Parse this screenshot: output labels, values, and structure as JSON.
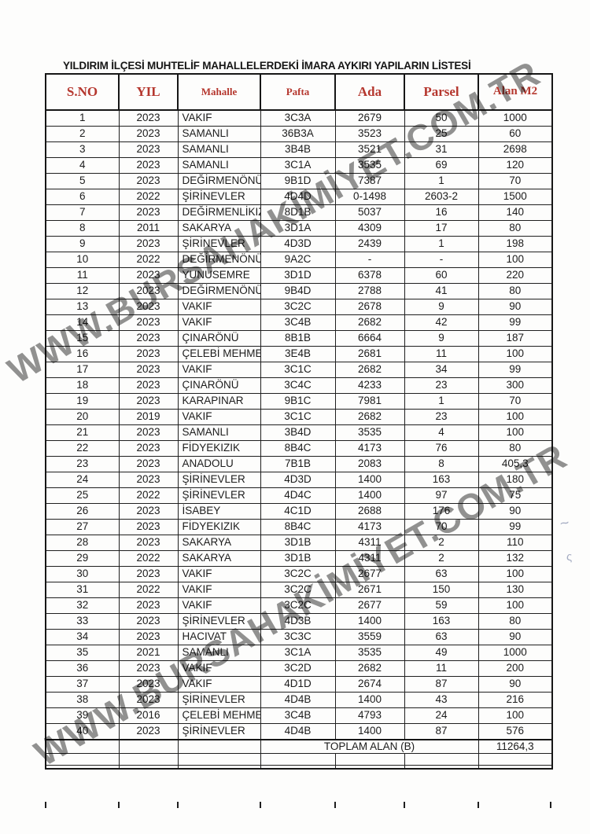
{
  "page": {
    "title": "YILDIRIM İLÇESİ MUHTELİF MAHALLELERDEKİ İMARA AYKIRI YAPILARIN LİSTESİ"
  },
  "watermark": {
    "text": "WWW.BURSAHAKİMİYET.COM.TR"
  },
  "colors": {
    "header_text": "#b5372e",
    "table_border": "#1f1f1f",
    "body_text": "#1c1c1c",
    "watermark_gray": "#7a7a7a",
    "page_background": "#fdfdfc"
  },
  "annotations": {
    "pen_mark_1": "~",
    "pen_mark_2": "ς"
  },
  "table": {
    "headers": [
      "S.NO",
      "YIL",
      "Mahalle",
      "Pafta",
      "Ada",
      "Parsel",
      "Alan M2"
    ],
    "rows": [
      [
        "1",
        "2023",
        "VAKIF",
        "3C3A",
        "2679",
        "50",
        "1000"
      ],
      [
        "2",
        "2023",
        "SAMANLI",
        "36B3A",
        "3523",
        "25",
        "60"
      ],
      [
        "3",
        "2023",
        "SAMANLI",
        "3B4B",
        "3521",
        "31",
        "2698"
      ],
      [
        "4",
        "2023",
        "SAMANLI",
        "3C1A",
        "3535",
        "69",
        "120"
      ],
      [
        "5",
        "2023",
        "DEĞİRMENÖNÜ",
        "9B1D",
        "7387",
        "1",
        "70"
      ],
      [
        "6",
        "2022",
        "ŞİRİNEVLER",
        "4D4D",
        "0-1498",
        "2603-2",
        "1500"
      ],
      [
        "7",
        "2023",
        "DEĞİRMENLİKIZIK",
        "8D1B",
        "5037",
        "16",
        "140"
      ],
      [
        "8",
        "2011",
        "SAKARYA",
        "3D1A",
        "4309",
        "17",
        "80"
      ],
      [
        "9",
        "2023",
        "ŞİRİNEVLER",
        "4D3D",
        "2439",
        "1",
        "198"
      ],
      [
        "10",
        "2022",
        "DEĞİRMENÖNÜ",
        "9A2C",
        "-",
        "-",
        "100"
      ],
      [
        "11",
        "2023",
        "YUNUSEMRE",
        "3D1D",
        "6378",
        "60",
        "220"
      ],
      [
        "12",
        "2023",
        "DEĞİRMENÖNÜ",
        "9B4D",
        "2788",
        "41",
        "80"
      ],
      [
        "13",
        "2023",
        "VAKIF",
        "3C2C",
        "2678",
        "9",
        "90"
      ],
      [
        "14",
        "2023",
        "VAKIF",
        "3C4B",
        "2682",
        "42",
        "99"
      ],
      [
        "15",
        "2023",
        "ÇINARÖNÜ",
        "8B1B",
        "6664",
        "9",
        "187"
      ],
      [
        "16",
        "2023",
        "ÇELEBİ MEHMET",
        "3E4B",
        "2681",
        "11",
        "100"
      ],
      [
        "17",
        "2023",
        "VAKIF",
        "3C1C",
        "2682",
        "34",
        "99"
      ],
      [
        "18",
        "2023",
        "ÇINARÖNÜ",
        "3C4C",
        "4233",
        "23",
        "300"
      ],
      [
        "19",
        "2023",
        "KARAPINAR",
        "9B1C",
        "7981",
        "1",
        "70"
      ],
      [
        "20",
        "2019",
        "VAKIF",
        "3C1C",
        "2682",
        "23",
        "100"
      ],
      [
        "21",
        "2023",
        "SAMANLI",
        "3B4D",
        "3535",
        "4",
        "100"
      ],
      [
        "22",
        "2023",
        "FİDYEKIZIK",
        "8B4C",
        "4173",
        "76",
        "80"
      ],
      [
        "23",
        "2023",
        "ANADOLU",
        "7B1B",
        "2083",
        "8",
        "405,3"
      ],
      [
        "24",
        "2023",
        "ŞİRİNEVLER",
        "4D3D",
        "1400",
        "163",
        "180"
      ],
      [
        "25",
        "2022",
        "ŞİRİNEVLER",
        "4D4C",
        "1400",
        "97",
        "75"
      ],
      [
        "26",
        "2023",
        "İSABEY",
        "4C1D",
        "2688",
        "176",
        "90"
      ],
      [
        "27",
        "2023",
        "FİDYEKIZIK",
        "8B4C",
        "4173",
        "70",
        "99"
      ],
      [
        "28",
        "2023",
        "SAKARYA",
        "3D1B",
        "4311",
        "2",
        "110"
      ],
      [
        "29",
        "2022",
        "SAKARYA",
        "3D1B",
        "4311",
        "2",
        "132"
      ],
      [
        "30",
        "2023",
        "VAKIF",
        "3C2C",
        "2677",
        "63",
        "100"
      ],
      [
        "31",
        "2022",
        "VAKIF",
        "3C2C",
        "2671",
        "150",
        "130"
      ],
      [
        "32",
        "2023",
        "VAKIF",
        "3C2C",
        "2677",
        "59",
        "100"
      ],
      [
        "33",
        "2023",
        "ŞİRİNEVLER",
        "4D3B",
        "1400",
        "163",
        "80"
      ],
      [
        "34",
        "2023",
        "HACIVAT",
        "3C3C",
        "3559",
        "63",
        "90"
      ],
      [
        "35",
        "2021",
        "SAMANLI",
        "3C1A",
        "3535",
        "49",
        "1000"
      ],
      [
        "36",
        "2023",
        "VAKIF",
        "3C2D",
        "2682",
        "11",
        "200"
      ],
      [
        "37",
        "2023",
        "VAKIF",
        "4D1D",
        "2674",
        "87",
        "90"
      ],
      [
        "38",
        "2023",
        "ŞİRİNEVLER",
        "4D4B",
        "1400",
        "43",
        "216"
      ],
      [
        "39",
        "2016",
        "ÇELEBİ MEHMET",
        "3C4B",
        "4793",
        "24",
        "100"
      ],
      [
        "40",
        "2023",
        "ŞİRİNEVLER",
        "4D4B",
        "1400",
        "87",
        "576"
      ]
    ],
    "total_label": "TOPLAM ALAN (B)",
    "total_value": "11264,3"
  }
}
